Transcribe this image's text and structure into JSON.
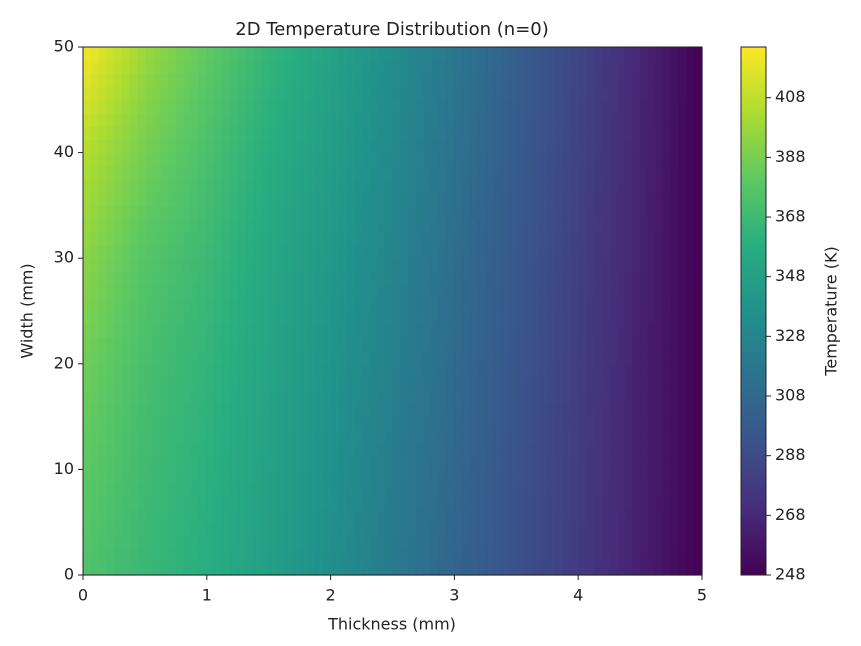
{
  "chart_data": {
    "type": "contour",
    "title": "2D Temperature Distribution (n=0)",
    "x_label": "Thickness (mm)",
    "y_label": "Width (mm)",
    "colorbar_label": "Temperature (K)",
    "colormap": "viridis",
    "x": [
      0,
      0.5,
      1,
      1.5,
      2,
      2.5,
      3,
      3.5,
      4,
      4.5,
      5
    ],
    "y": [
      0,
      10,
      20,
      30,
      40,
      50
    ],
    "z": [
      [
        375,
        366,
        358,
        347,
        335,
        320,
        305,
        292,
        278,
        263,
        248
      ],
      [
        380,
        369,
        360,
        349,
        337,
        322,
        307,
        293,
        279,
        264,
        248
      ],
      [
        386,
        372,
        363,
        351,
        339,
        325,
        309,
        295,
        280,
        264,
        248
      ],
      [
        394,
        377,
        367,
        354,
        342,
        328,
        311,
        297,
        281,
        265,
        248
      ],
      [
        405,
        387,
        373,
        358,
        346,
        331,
        314,
        299,
        283,
        266,
        248
      ],
      [
        424,
        398,
        381,
        364,
        350,
        334,
        318,
        301,
        285,
        267,
        248
      ]
    ],
    "xlim": [
      0,
      5
    ],
    "ylim": [
      0,
      50
    ],
    "zlim": [
      248,
      425
    ],
    "xticks": [
      0,
      1,
      2,
      3,
      4,
      5
    ],
    "yticks": [
      0,
      10,
      20,
      30,
      40,
      50
    ],
    "zticks": [
      248,
      268,
      288,
      308,
      328,
      348,
      368,
      388,
      408
    ]
  }
}
